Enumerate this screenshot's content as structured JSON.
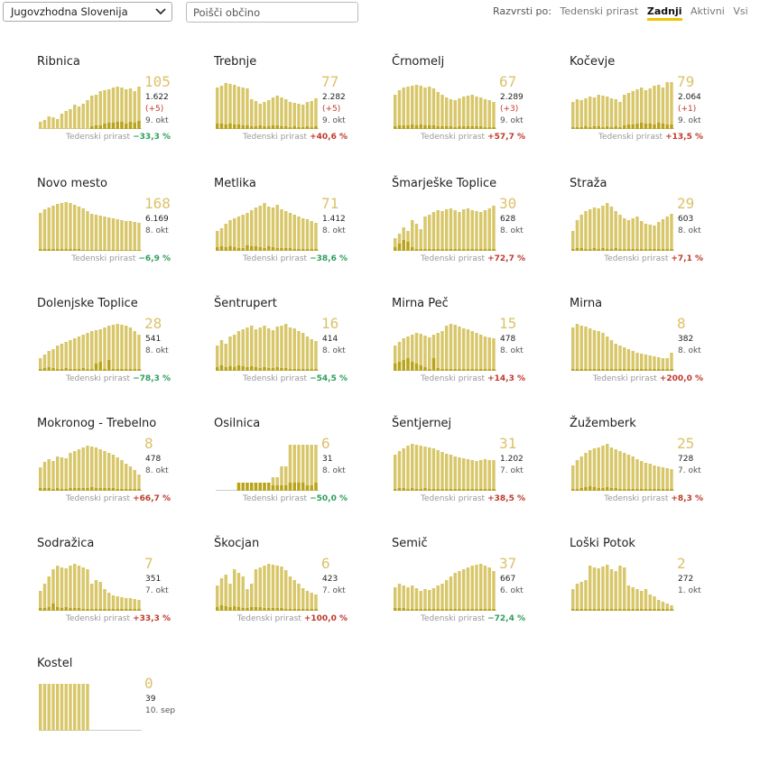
{
  "region_select": {
    "value": "Jugovzhodna Slovenija"
  },
  "search": {
    "placeholder": "Poišči občino"
  },
  "sort": {
    "label": "Razvrsti po:",
    "options": [
      {
        "label": "Tedenski prirast",
        "active": false
      },
      {
        "label": "Zadnji",
        "active": true
      },
      {
        "label": "Aktivni",
        "active": false
      },
      {
        "label": "Vsi",
        "active": false
      }
    ]
  },
  "colors": {
    "bar": "#d8c76a",
    "bar_dark": "#b9a31a",
    "axis": "#cccccc",
    "number": "#dcc26a",
    "positive": "#c0392b",
    "negative": "#2e9e5b"
  },
  "growth_label": "Tedenski prirast",
  "municipalities": [
    {
      "name": "Ribnica",
      "active": "105",
      "total": "1.622",
      "delta": "(+5)",
      "date": "9. okt",
      "growth": "−33,3 %",
      "growth_sign": "neg",
      "bars": [
        8,
        10,
        14,
        13,
        11,
        17,
        20,
        22,
        27,
        25,
        28,
        32,
        37,
        38,
        42,
        43,
        44,
        46,
        47,
        46,
        44,
        45,
        42,
        47
      ],
      "dark": [
        0,
        0,
        0,
        0,
        0,
        0,
        0,
        0,
        0,
        0,
        0,
        0,
        3,
        4,
        4,
        6,
        7,
        7,
        8,
        8,
        6,
        8,
        7,
        9
      ]
    },
    {
      "name": "Trebnje",
      "active": "77",
      "total": "2.282",
      "delta": "(+5)",
      "date": "9. okt",
      "growth": "+40,6 %",
      "growth_sign": "pos",
      "bars": [
        46,
        48,
        51,
        50,
        49,
        47,
        46,
        45,
        33,
        31,
        28,
        30,
        32,
        35,
        37,
        35,
        33,
        30,
        29,
        28,
        27,
        30,
        31,
        34
      ],
      "dark": [
        6,
        6,
        5,
        6,
        5,
        5,
        4,
        4,
        3,
        3,
        4,
        3,
        3,
        4,
        4,
        3,
        3,
        2,
        3,
        2,
        2,
        3,
        2,
        3
      ]
    },
    {
      "name": "Črnomelj",
      "active": "67",
      "total": "2.289",
      "delta": "(+3)",
      "date": "9. okt",
      "growth": "+57,7 %",
      "growth_sign": "pos",
      "bars": [
        38,
        43,
        46,
        47,
        48,
        49,
        48,
        46,
        47,
        45,
        41,
        38,
        35,
        33,
        32,
        34,
        36,
        37,
        38,
        36,
        35,
        33,
        32,
        30
      ],
      "dark": [
        3,
        4,
        4,
        4,
        5,
        4,
        5,
        4,
        4,
        4,
        3,
        3,
        3,
        3,
        2,
        3,
        3,
        3,
        3,
        3,
        3,
        2,
        2,
        2
      ]
    },
    {
      "name": "Kočevje",
      "active": "79",
      "total": "2.064",
      "delta": "(+1)",
      "date": "9. okt",
      "growth": "+13,5 %",
      "growth_sign": "pos",
      "bars": [
        30,
        33,
        32,
        34,
        36,
        35,
        38,
        37,
        36,
        34,
        33,
        30,
        38,
        40,
        42,
        44,
        46,
        43,
        45,
        48,
        49,
        46,
        52,
        52
      ],
      "dark": [
        2,
        2,
        2,
        3,
        2,
        3,
        3,
        2,
        3,
        2,
        3,
        2,
        4,
        5,
        5,
        6,
        7,
        6,
        6,
        5,
        7,
        6,
        5,
        5
      ]
    },
    {
      "name": "Novo mesto",
      "active": "168",
      "total": "6.169",
      "date": "8. okt",
      "growth": "−6,9 %",
      "growth_sign": "neg",
      "bars": [
        42,
        46,
        48,
        50,
        52,
        53,
        54,
        53,
        51,
        49,
        47,
        44,
        41,
        40,
        39,
        38,
        37,
        36,
        35,
        34,
        33,
        33,
        32,
        31
      ],
      "dark": [
        2,
        2,
        2,
        2,
        2,
        2,
        2,
        2,
        2,
        2,
        1,
        1,
        1,
        1,
        1,
        1,
        1,
        1,
        1,
        1,
        1,
        1,
        1,
        1
      ]
    },
    {
      "name": "Metlika",
      "active": "71",
      "total": "1.412",
      "date": "8. okt",
      "growth": "−38,6 %",
      "growth_sign": "neg",
      "bars": [
        22,
        25,
        30,
        34,
        36,
        38,
        40,
        42,
        45,
        48,
        50,
        53,
        49,
        48,
        51,
        46,
        44,
        42,
        40,
        38,
        36,
        35,
        33,
        31
      ],
      "dark": [
        4,
        5,
        4,
        5,
        4,
        3,
        3,
        6,
        5,
        5,
        4,
        3,
        5,
        4,
        3,
        3,
        3,
        3,
        2,
        2,
        2,
        2,
        2,
        2
      ]
    },
    {
      "name": "Šmarješke Toplice",
      "active": "30",
      "total": "628",
      "date": "8. okt",
      "growth": "+72,7 %",
      "growth_sign": "pos",
      "bars": [
        14,
        19,
        26,
        22,
        34,
        30,
        24,
        38,
        40,
        43,
        45,
        44,
        46,
        47,
        45,
        43,
        46,
        47,
        45,
        44,
        43,
        45,
        47,
        50
      ],
      "dark": [
        4,
        8,
        12,
        10,
        4,
        2,
        2,
        2,
        2,
        2,
        2,
        2,
        2,
        2,
        2,
        2,
        2,
        2,
        2,
        2,
        2,
        2,
        2,
        2
      ]
    },
    {
      "name": "Straža",
      "active": "29",
      "total": "603",
      "date": "8. okt",
      "growth": "+7,1 %",
      "growth_sign": "pos",
      "bars": [
        22,
        34,
        40,
        44,
        46,
        48,
        47,
        50,
        53,
        49,
        44,
        40,
        36,
        34,
        36,
        38,
        33,
        30,
        29,
        28,
        32,
        35,
        38,
        41
      ],
      "dark": [
        2,
        3,
        3,
        2,
        2,
        3,
        2,
        3,
        2,
        2,
        3,
        2,
        2,
        2,
        2,
        2,
        2,
        2,
        2,
        2,
        2,
        2,
        2,
        2
      ]
    },
    {
      "name": "Dolenjske Toplice",
      "active": "28",
      "total": "541",
      "date": "8. okt",
      "growth": "−78,3 %",
      "growth_sign": "neg",
      "bars": [
        14,
        18,
        22,
        24,
        28,
        30,
        32,
        34,
        36,
        38,
        40,
        42,
        44,
        45,
        46,
        48,
        50,
        51,
        52,
        51,
        50,
        48,
        44,
        40
      ],
      "dark": [
        2,
        3,
        4,
        3,
        2,
        2,
        3,
        2,
        2,
        2,
        3,
        2,
        2,
        8,
        10,
        2,
        12,
        2,
        2,
        2,
        2,
        2,
        2,
        2
      ]
    },
    {
      "name": "Šentrupert",
      "active": "16",
      "total": "414",
      "date": "8. okt",
      "growth": "−54,5 %",
      "growth_sign": "neg",
      "bars": [
        28,
        34,
        30,
        38,
        40,
        44,
        46,
        48,
        50,
        46,
        48,
        50,
        47,
        45,
        49,
        50,
        52,
        48,
        47,
        44,
        42,
        38,
        35,
        33
      ],
      "dark": [
        4,
        6,
        4,
        5,
        4,
        6,
        5,
        4,
        5,
        4,
        3,
        4,
        3,
        3,
        4,
        3,
        3,
        2,
        2,
        2,
        2,
        2,
        2,
        2
      ]
    },
    {
      "name": "Mirna Peč",
      "active": "15",
      "total": "478",
      "date": "8. okt",
      "growth": "+14,3 %",
      "growth_sign": "pos",
      "bars": [
        28,
        32,
        36,
        38,
        40,
        42,
        41,
        39,
        37,
        40,
        42,
        44,
        50,
        52,
        51,
        49,
        47,
        46,
        44,
        42,
        40,
        38,
        37,
        36
      ],
      "dark": [
        8,
        10,
        12,
        14,
        10,
        8,
        6,
        4,
        2,
        14,
        3,
        2,
        2,
        2,
        2,
        2,
        2,
        2,
        2,
        2,
        2,
        2,
        2,
        2
      ]
    },
    {
      "name": "Mirna",
      "active": "8",
      "total": "382",
      "date": "8. okt",
      "growth": "+200,0 %",
      "growth_sign": "pos",
      "bars": [
        48,
        52,
        50,
        49,
        47,
        45,
        44,
        42,
        38,
        34,
        30,
        28,
        26,
        24,
        22,
        20,
        19,
        18,
        17,
        16,
        15,
        14,
        14,
        20
      ],
      "dark": [
        2,
        2,
        2,
        2,
        2,
        2,
        2,
        2,
        2,
        2,
        2,
        2,
        2,
        2,
        2,
        2,
        2,
        2,
        2,
        2,
        2,
        2,
        2,
        2
      ]
    },
    {
      "name": "Mokronog - Trebelno",
      "active": "8",
      "total": "478",
      "date": "8. okt",
      "growth": "+66,7 %",
      "growth_sign": "pos",
      "bars": [
        26,
        32,
        35,
        33,
        38,
        37,
        36,
        42,
        44,
        46,
        48,
        50,
        49,
        48,
        46,
        44,
        42,
        40,
        37,
        34,
        30,
        27,
        23,
        18
      ],
      "dark": [
        3,
        3,
        3,
        2,
        3,
        2,
        2,
        3,
        3,
        3,
        3,
        3,
        4,
        3,
        3,
        3,
        3,
        3,
        2,
        2,
        2,
        2,
        2,
        2
      ]
    },
    {
      "name": "Osilnica",
      "active": "6",
      "total": "31",
      "date": "8. okt",
      "growth": "−50,0 %",
      "growth_sign": "neg",
      "bars": [
        0,
        0,
        0,
        0,
        0,
        9,
        9,
        9,
        9,
        9,
        9,
        9,
        9,
        15,
        15,
        27,
        27,
        51,
        51,
        51,
        51,
        51,
        51,
        51
      ],
      "dark": [
        0,
        0,
        0,
        0,
        0,
        9,
        9,
        9,
        9,
        9,
        9,
        9,
        9,
        6,
        6,
        6,
        6,
        9,
        9,
        9,
        9,
        6,
        6,
        9
      ]
    },
    {
      "name": "Šentjernej",
      "active": "31",
      "total": "1.202",
      "date": "7. okt",
      "growth": "+38,5 %",
      "growth_sign": "pos",
      "bars": [
        40,
        44,
        47,
        50,
        52,
        51,
        50,
        49,
        48,
        47,
        45,
        43,
        41,
        40,
        38,
        37,
        36,
        35,
        34,
        33,
        34,
        35,
        34,
        34
      ],
      "dark": [
        2,
        3,
        3,
        2,
        3,
        2,
        2,
        3,
        2,
        2,
        2,
        2,
        2,
        2,
        2,
        2,
        2,
        2,
        2,
        2,
        2,
        2,
        2,
        2
      ]
    },
    {
      "name": "Žužemberk",
      "active": "25",
      "total": "728",
      "date": "7. okt",
      "growth": "+8,3 %",
      "growth_sign": "pos",
      "bars": [
        28,
        34,
        38,
        42,
        45,
        47,
        48,
        50,
        52,
        48,
        46,
        44,
        42,
        40,
        38,
        35,
        33,
        31,
        30,
        28,
        27,
        26,
        25,
        24
      ],
      "dark": [
        2,
        2,
        3,
        4,
        5,
        4,
        3,
        3,
        4,
        3,
        3,
        2,
        2,
        2,
        2,
        2,
        2,
        2,
        2,
        2,
        2,
        2,
        2,
        2
      ]
    },
    {
      "name": "Sodražica",
      "active": "7",
      "total": "351",
      "date": "7. okt",
      "growth": "+33,3 %",
      "growth_sign": "pos",
      "bars": [
        22,
        30,
        38,
        46,
        50,
        48,
        47,
        50,
        52,
        50,
        48,
        46,
        30,
        34,
        32,
        24,
        20,
        17,
        16,
        15,
        14,
        14,
        13,
        12
      ],
      "dark": [
        3,
        3,
        4,
        8,
        4,
        3,
        4,
        3,
        3,
        3,
        2,
        2,
        2,
        2,
        2,
        2,
        2,
        2,
        2,
        2,
        2,
        2,
        2,
        2
      ]
    },
    {
      "name": "Škocjan",
      "active": "6",
      "total": "423",
      "date": "7. okt",
      "growth": "+100,0 %",
      "growth_sign": "pos",
      "bars": [
        28,
        36,
        40,
        30,
        46,
        42,
        38,
        24,
        30,
        46,
        48,
        50,
        52,
        51,
        50,
        49,
        45,
        38,
        34,
        30,
        25,
        22,
        20,
        18
      ],
      "dark": [
        4,
        6,
        5,
        4,
        5,
        4,
        3,
        3,
        4,
        4,
        4,
        3,
        3,
        3,
        3,
        3,
        2,
        2,
        2,
        2,
        2,
        2,
        2,
        2
      ]
    },
    {
      "name": "Semič",
      "active": "37",
      "total": "667",
      "date": "6. okt",
      "growth": "−72,4 %",
      "growth_sign": "neg",
      "bars": [
        26,
        30,
        28,
        26,
        28,
        25,
        22,
        24,
        23,
        25,
        28,
        30,
        34,
        38,
        42,
        44,
        46,
        48,
        50,
        51,
        52,
        50,
        48,
        44
      ],
      "dark": [
        3,
        3,
        3,
        2,
        2,
        2,
        2,
        2,
        2,
        2,
        2,
        2,
        2,
        2,
        2,
        2,
        2,
        2,
        2,
        2,
        2,
        2,
        2,
        2
      ]
    },
    {
      "name": "Loški Potok",
      "active": "2",
      "total": "272",
      "date": "1. okt",
      "growth": "",
      "growth_sign": "neg",
      "bars": [
        24,
        30,
        32,
        34,
        50,
        48,
        47,
        49,
        51,
        46,
        44,
        50,
        48,
        28,
        26,
        24,
        22,
        24,
        18,
        16,
        12,
        10,
        8,
        6
      ],
      "dark": [
        2,
        2,
        2,
        2,
        2,
        2,
        2,
        2,
        2,
        2,
        2,
        2,
        2,
        2,
        2,
        2,
        2,
        2,
        2,
        2,
        2,
        2,
        2,
        2
      ]
    },
    {
      "name": "Kostel",
      "active": "0",
      "total": "39",
      "date": "10. sep",
      "growth": "",
      "growth_sign": "neg",
      "bars": [
        52,
        52,
        52,
        52,
        52,
        52,
        52,
        52,
        52,
        52,
        52,
        52,
        0,
        0,
        0,
        0,
        0,
        0,
        0,
        0,
        0,
        0,
        0,
        0
      ],
      "dark": [
        0,
        0,
        0,
        0,
        0,
        0,
        0,
        0,
        0,
        0,
        0,
        0,
        0,
        0,
        0,
        0,
        0,
        0,
        0,
        0,
        0,
        0,
        0,
        0
      ]
    }
  ]
}
